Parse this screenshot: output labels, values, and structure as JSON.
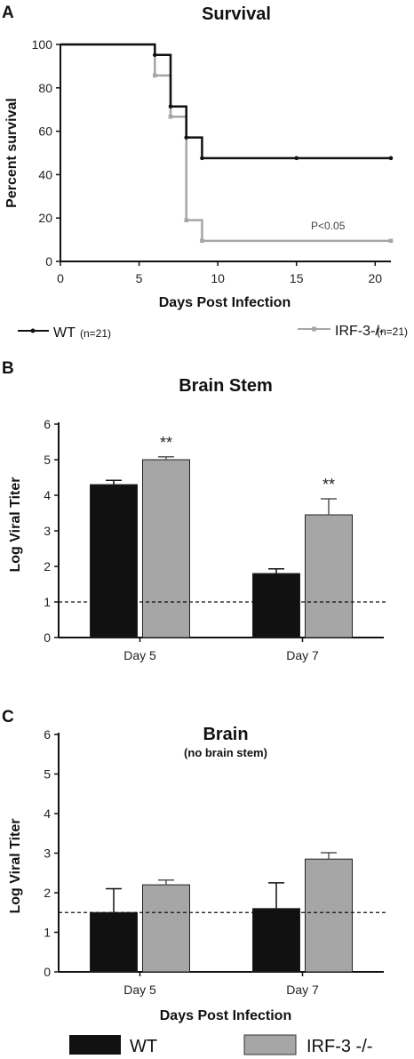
{
  "colors": {
    "wt": "#111111",
    "irf3": "#a6a6a6"
  },
  "chart_data": [
    {
      "panel": "A",
      "type": "line",
      "step": true,
      "title": "Survival",
      "xlabel": "Days Post Infection",
      "ylabel": "Percent survival",
      "xlim": [
        0,
        21
      ],
      "ylim": [
        0,
        100
      ],
      "xticks": [
        "0",
        "5",
        "10",
        "15",
        "20"
      ],
      "yticks": [
        "0",
        "20",
        "40",
        "60",
        "80",
        "100"
      ],
      "series": [
        {
          "name": "WT",
          "n_label": "(n=21)",
          "x": [
            0,
            6,
            7,
            8,
            9,
            15,
            21
          ],
          "y": [
            100,
            95.2,
            71.4,
            57.1,
            47.6,
            47.6,
            47.6
          ]
        },
        {
          "name": "IRF-3-/-",
          "n_label": "(n=21)",
          "x": [
            0,
            6,
            7,
            8,
            9,
            21
          ],
          "y": [
            100,
            85.7,
            66.7,
            19,
            9.5,
            9.5
          ]
        }
      ],
      "annotation": "P<0.05",
      "legend": "bottom"
    },
    {
      "panel": "B",
      "type": "bar",
      "title": "Brain Stem",
      "ylabel": "Log Viral Titer",
      "categories": [
        "Day 5",
        "Day 7"
      ],
      "ylim": [
        0,
        6
      ],
      "yticks": [
        "0",
        "1",
        "2",
        "3",
        "4",
        "5",
        "6"
      ],
      "series": [
        {
          "name": "WT",
          "values": [
            4.3,
            1.8
          ],
          "errors": [
            0.12,
            0.13
          ]
        },
        {
          "name": "IRF-3 -/-",
          "values": [
            5.0,
            3.45
          ],
          "errors": [
            0.08,
            0.45
          ]
        }
      ],
      "limit_line": 1.0,
      "significance": [
        "**",
        "**"
      ]
    },
    {
      "panel": "C",
      "type": "bar",
      "title": "Brain",
      "subtitle": "(no brain stem)",
      "xlabel": "Days Post Infection",
      "ylabel": "Log Viral Titer",
      "categories": [
        "Day 5",
        "Day 7"
      ],
      "ylim": [
        0,
        6
      ],
      "yticks": [
        "0",
        "1",
        "2",
        "3",
        "4",
        "5",
        "6"
      ],
      "series": [
        {
          "name": "WT",
          "values": [
            1.5,
            1.6
          ],
          "errors": [
            0.6,
            0.65
          ]
        },
        {
          "name": "IRF-3 -/-",
          "values": [
            2.2,
            2.85
          ],
          "errors": [
            0.12,
            0.16
          ]
        }
      ],
      "limit_line": 1.5,
      "legend": "bottom"
    }
  ]
}
